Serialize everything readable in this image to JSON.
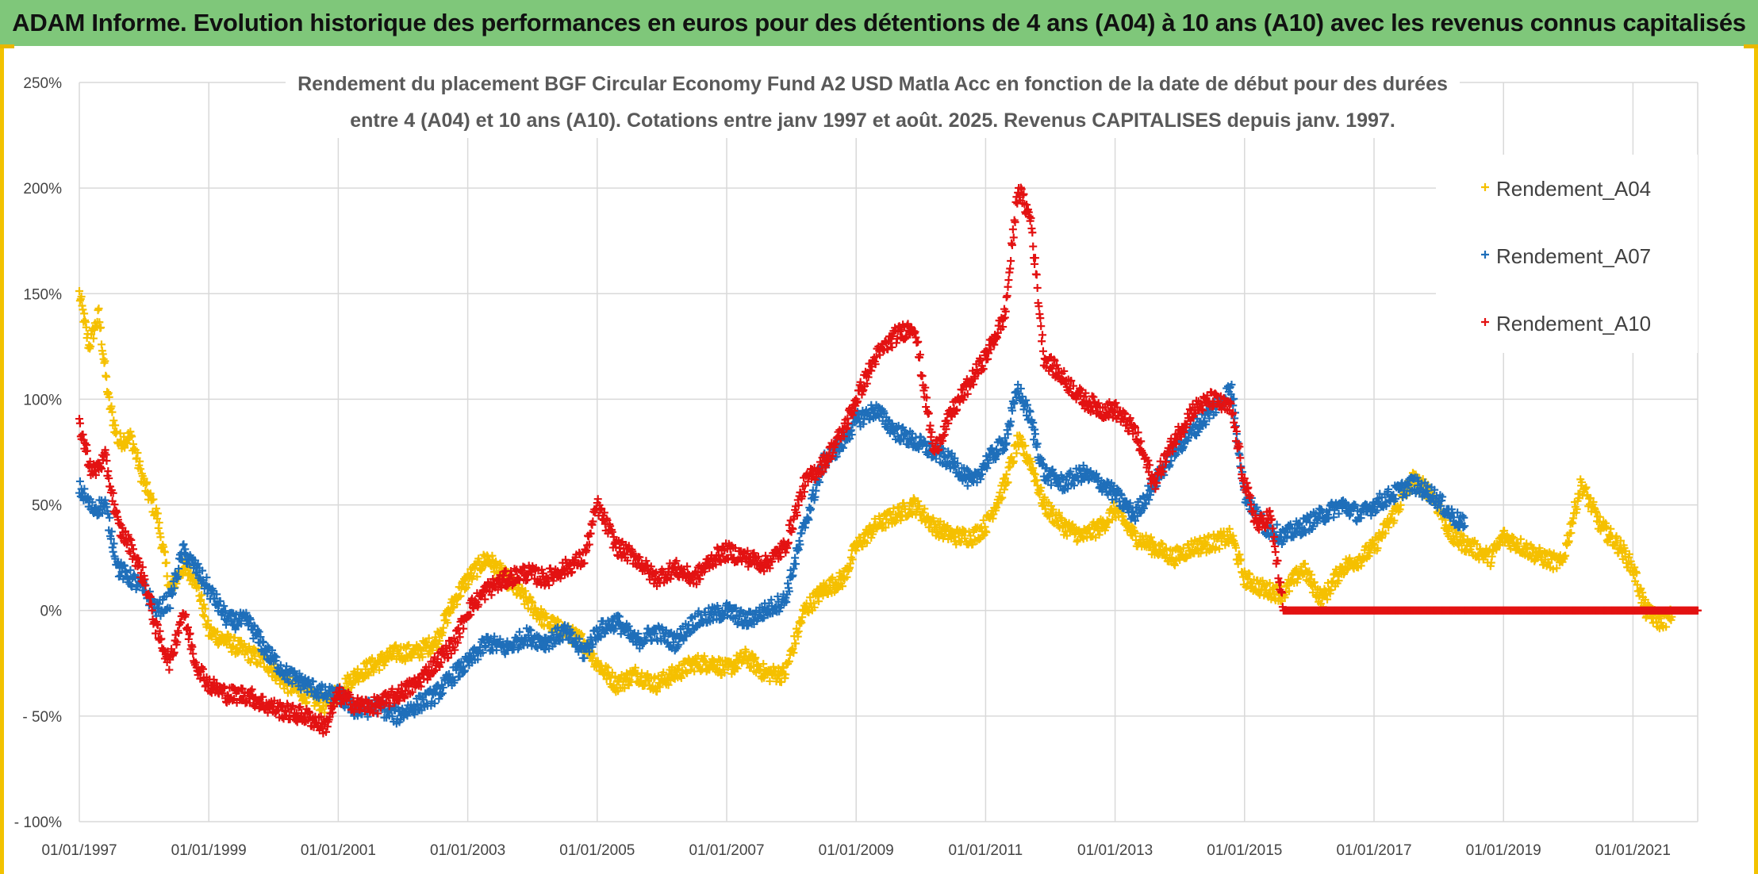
{
  "banner": {
    "title": "ADAM Informe. Evolution historique des performances en euros pour des détentions de 4 ans (A04) à 10 ans (A10) avec les revenus connus capitalisés"
  },
  "chart_data": {
    "type": "scatter",
    "title_line1": "Rendement du placement BGF Circular Economy Fund A2 USD Matla Acc en fonction de la date de début pour des durées",
    "title_line2": "entre 4 (A04) et 10 ans (A10). Cotations entre janv 1997 et août. 2025. Revenus CAPITALISES depuis janv. 1997.",
    "xlabel": "",
    "ylabel": "",
    "y_ticks": [
      "250%",
      "200%",
      "150%",
      "100%",
      "50%",
      "0%",
      "- 50%",
      "- 100%"
    ],
    "y_tick_values": [
      250,
      200,
      150,
      100,
      50,
      0,
      -50,
      -100
    ],
    "x_ticks": [
      "01/01/1997",
      "01/01/1999",
      "01/01/2001",
      "01/01/2003",
      "01/01/2005",
      "01/01/2007",
      "01/01/2009",
      "01/01/2011",
      "01/01/2013",
      "01/01/2015",
      "01/01/2017",
      "01/01/2019",
      "01/01/2021"
    ],
    "x_tick_years": [
      1997,
      1999,
      2001,
      2003,
      2005,
      2007,
      2009,
      2011,
      2013,
      2015,
      2017,
      2019,
      2021
    ],
    "xlim": [
      1997.0,
      2022.0
    ],
    "ylim": [
      -100,
      250
    ],
    "grid": true,
    "legend_position": "right",
    "x_unit": "year",
    "series": [
      {
        "name": "Rendement_A04",
        "color": "#f5c000",
        "points": [
          [
            1997.0,
            150
          ],
          [
            1997.15,
            125
          ],
          [
            1997.3,
            140
          ],
          [
            1997.45,
            100
          ],
          [
            1997.6,
            80
          ],
          [
            1997.8,
            82
          ],
          [
            1998.0,
            60
          ],
          [
            1998.2,
            45
          ],
          [
            1998.4,
            10
          ],
          [
            1998.6,
            20
          ],
          [
            1998.8,
            15
          ],
          [
            1999.0,
            -10
          ],
          [
            1999.3,
            -15
          ],
          [
            1999.6,
            -20
          ],
          [
            1999.9,
            -25
          ],
          [
            2000.2,
            -35
          ],
          [
            2000.5,
            -40
          ],
          [
            2000.8,
            -45
          ],
          [
            2001.0,
            -38
          ],
          [
            2001.3,
            -30
          ],
          [
            2001.6,
            -25
          ],
          [
            2001.9,
            -20
          ],
          [
            2002.2,
            -20
          ],
          [
            2002.5,
            -15
          ],
          [
            2002.8,
            5
          ],
          [
            2003.0,
            15
          ],
          [
            2003.3,
            25
          ],
          [
            2003.6,
            15
          ],
          [
            2003.9,
            5
          ],
          [
            2004.2,
            -5
          ],
          [
            2004.5,
            -10
          ],
          [
            2004.8,
            -15
          ],
          [
            2005.0,
            -25
          ],
          [
            2005.3,
            -35
          ],
          [
            2005.6,
            -30
          ],
          [
            2005.9,
            -35
          ],
          [
            2006.2,
            -30
          ],
          [
            2006.5,
            -25
          ],
          [
            2006.8,
            -25
          ],
          [
            2007.0,
            -28
          ],
          [
            2007.3,
            -22
          ],
          [
            2007.6,
            -30
          ],
          [
            2007.9,
            -30
          ],
          [
            2008.2,
            0
          ],
          [
            2008.5,
            10
          ],
          [
            2008.8,
            15
          ],
          [
            2009.0,
            30
          ],
          [
            2009.3,
            40
          ],
          [
            2009.6,
            45
          ],
          [
            2009.9,
            50
          ],
          [
            2010.2,
            40
          ],
          [
            2010.5,
            35
          ],
          [
            2010.8,
            35
          ],
          [
            2011.0,
            40
          ],
          [
            2011.3,
            60
          ],
          [
            2011.5,
            80
          ],
          [
            2011.7,
            70
          ],
          [
            2011.9,
            50
          ],
          [
            2012.2,
            40
          ],
          [
            2012.5,
            35
          ],
          [
            2012.8,
            40
          ],
          [
            2013.0,
            48
          ],
          [
            2013.3,
            35
          ],
          [
            2013.6,
            30
          ],
          [
            2013.9,
            25
          ],
          [
            2014.2,
            30
          ],
          [
            2014.5,
            32
          ],
          [
            2014.8,
            35
          ],
          [
            2015.0,
            15
          ],
          [
            2015.3,
            10
          ],
          [
            2015.6,
            8
          ],
          [
            2015.9,
            20
          ],
          [
            2016.2,
            5
          ],
          [
            2016.5,
            20
          ],
          [
            2016.8,
            25
          ],
          [
            2017.0,
            30
          ],
          [
            2017.3,
            45
          ],
          [
            2017.6,
            62
          ],
          [
            2017.9,
            55
          ],
          [
            2018.2,
            35
          ],
          [
            2018.5,
            30
          ],
          [
            2018.8,
            25
          ],
          [
            2019.0,
            35
          ],
          [
            2019.3,
            30
          ],
          [
            2019.6,
            25
          ],
          [
            2019.9,
            22
          ],
          [
            2020.2,
            60
          ],
          [
            2020.5,
            40
          ],
          [
            2020.8,
            30
          ],
          [
            2021.0,
            20
          ],
          [
            2021.2,
            0
          ],
          [
            2021.4,
            -5
          ],
          [
            2021.6,
            -3
          ]
        ]
      },
      {
        "name": "Rendement_A07",
        "color": "#1f6fba",
        "points": [
          [
            1997.0,
            58
          ],
          [
            1997.2,
            48
          ],
          [
            1997.4,
            50
          ],
          [
            1997.6,
            20
          ],
          [
            1997.8,
            15
          ],
          [
            1998.0,
            10
          ],
          [
            1998.2,
            0
          ],
          [
            1998.4,
            5
          ],
          [
            1998.6,
            28
          ],
          [
            1998.8,
            20
          ],
          [
            1999.0,
            10
          ],
          [
            1999.3,
            -5
          ],
          [
            1999.6,
            -5
          ],
          [
            1999.9,
            -20
          ],
          [
            2000.2,
            -30
          ],
          [
            2000.5,
            -35
          ],
          [
            2000.8,
            -40
          ],
          [
            2001.0,
            -40
          ],
          [
            2001.3,
            -48
          ],
          [
            2001.6,
            -45
          ],
          [
            2001.9,
            -50
          ],
          [
            2002.2,
            -45
          ],
          [
            2002.5,
            -40
          ],
          [
            2002.8,
            -30
          ],
          [
            2003.0,
            -25
          ],
          [
            2003.3,
            -15
          ],
          [
            2003.6,
            -18
          ],
          [
            2003.9,
            -12
          ],
          [
            2004.2,
            -15
          ],
          [
            2004.5,
            -10
          ],
          [
            2004.8,
            -20
          ],
          [
            2005.0,
            -10
          ],
          [
            2005.3,
            -5
          ],
          [
            2005.6,
            -15
          ],
          [
            2005.9,
            -10
          ],
          [
            2006.2,
            -15
          ],
          [
            2006.5,
            -5
          ],
          [
            2006.8,
            -2
          ],
          [
            2007.0,
            0
          ],
          [
            2007.3,
            -5
          ],
          [
            2007.6,
            0
          ],
          [
            2007.9,
            5
          ],
          [
            2008.2,
            40
          ],
          [
            2008.5,
            70
          ],
          [
            2008.8,
            80
          ],
          [
            2009.0,
            90
          ],
          [
            2009.3,
            95
          ],
          [
            2009.6,
            85
          ],
          [
            2009.9,
            80
          ],
          [
            2010.2,
            75
          ],
          [
            2010.5,
            70
          ],
          [
            2010.8,
            60
          ],
          [
            2011.0,
            70
          ],
          [
            2011.3,
            80
          ],
          [
            2011.5,
            105
          ],
          [
            2011.7,
            90
          ],
          [
            2011.9,
            65
          ],
          [
            2012.2,
            60
          ],
          [
            2012.5,
            65
          ],
          [
            2012.8,
            60
          ],
          [
            2013.0,
            55
          ],
          [
            2013.3,
            45
          ],
          [
            2013.6,
            60
          ],
          [
            2013.9,
            75
          ],
          [
            2014.2,
            85
          ],
          [
            2014.5,
            95
          ],
          [
            2014.8,
            105
          ],
          [
            2015.0,
            55
          ],
          [
            2015.3,
            40
          ],
          [
            2015.6,
            35
          ],
          [
            2015.9,
            40
          ],
          [
            2016.2,
            45
          ],
          [
            2016.5,
            50
          ],
          [
            2016.8,
            45
          ],
          [
            2017.0,
            50
          ],
          [
            2017.3,
            55
          ],
          [
            2017.6,
            60
          ],
          [
            2017.9,
            55
          ],
          [
            2018.2,
            45
          ],
          [
            2018.4,
            40
          ]
        ]
      },
      {
        "name": "Rendement_A10",
        "color": "#e31212",
        "points": [
          [
            1997.0,
            88
          ],
          [
            1997.2,
            65
          ],
          [
            1997.4,
            72
          ],
          [
            1997.6,
            40
          ],
          [
            1997.8,
            30
          ],
          [
            1998.0,
            15
          ],
          [
            1998.2,
            -10
          ],
          [
            1998.4,
            -25
          ],
          [
            1998.6,
            0
          ],
          [
            1998.8,
            -25
          ],
          [
            1999.0,
            -35
          ],
          [
            1999.3,
            -40
          ],
          [
            1999.6,
            -40
          ],
          [
            1999.9,
            -45
          ],
          [
            2000.2,
            -48
          ],
          [
            2000.5,
            -50
          ],
          [
            2000.8,
            -55
          ],
          [
            2001.0,
            -40
          ],
          [
            2001.3,
            -45
          ],
          [
            2001.6,
            -45
          ],
          [
            2001.9,
            -40
          ],
          [
            2002.2,
            -35
          ],
          [
            2002.5,
            -25
          ],
          [
            2002.8,
            -15
          ],
          [
            2003.0,
            0
          ],
          [
            2003.3,
            10
          ],
          [
            2003.6,
            15
          ],
          [
            2003.9,
            18
          ],
          [
            2004.2,
            15
          ],
          [
            2004.5,
            20
          ],
          [
            2004.8,
            25
          ],
          [
            2005.0,
            50
          ],
          [
            2005.3,
            30
          ],
          [
            2005.6,
            25
          ],
          [
            2005.9,
            15
          ],
          [
            2006.2,
            20
          ],
          [
            2006.5,
            15
          ],
          [
            2006.8,
            25
          ],
          [
            2007.0,
            28
          ],
          [
            2007.3,
            25
          ],
          [
            2007.6,
            22
          ],
          [
            2007.9,
            30
          ],
          [
            2008.2,
            60
          ],
          [
            2008.5,
            70
          ],
          [
            2008.8,
            85
          ],
          [
            2009.0,
            100
          ],
          [
            2009.3,
            120
          ],
          [
            2009.6,
            130
          ],
          [
            2009.9,
            135
          ],
          [
            2010.2,
            75
          ],
          [
            2010.5,
            95
          ],
          [
            2010.8,
            110
          ],
          [
            2011.0,
            120
          ],
          [
            2011.3,
            140
          ],
          [
            2011.5,
            200
          ],
          [
            2011.7,
            185
          ],
          [
            2011.9,
            120
          ],
          [
            2012.2,
            110
          ],
          [
            2012.5,
            100
          ],
          [
            2012.8,
            95
          ],
          [
            2013.0,
            95
          ],
          [
            2013.3,
            85
          ],
          [
            2013.6,
            60
          ],
          [
            2013.9,
            80
          ],
          [
            2014.2,
            95
          ],
          [
            2014.5,
            100
          ],
          [
            2014.8,
            95
          ],
          [
            2015.0,
            60
          ],
          [
            2015.2,
            40
          ],
          [
            2015.4,
            45
          ],
          [
            2015.6,
            0
          ],
          [
            2016.0,
            0
          ],
          [
            2017.0,
            0
          ],
          [
            2018.0,
            0
          ],
          [
            2019.0,
            0
          ],
          [
            2020.0,
            0
          ],
          [
            2021.0,
            0
          ],
          [
            2022.0,
            0
          ]
        ]
      }
    ]
  }
}
